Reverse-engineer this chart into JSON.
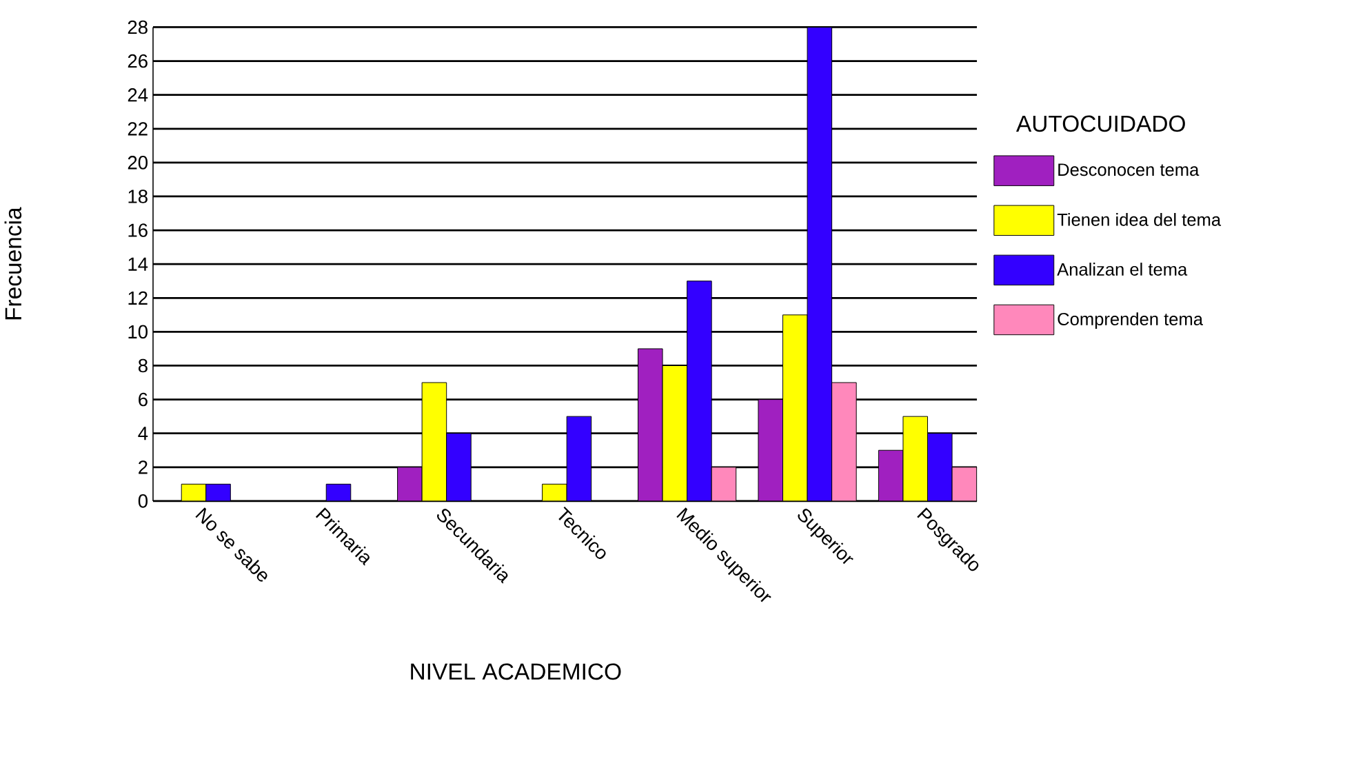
{
  "chart_data": {
    "type": "bar",
    "xlabel": "NIVEL ACADEMICO",
    "ylabel": "Frecuencia",
    "legend_title": "AUTOCUIDADO",
    "categories": [
      "No se sabe",
      "Primaria",
      "Secundaria",
      "Tecnico",
      "Medio superior",
      "Superior",
      "Posgrado"
    ],
    "series": [
      {
        "name": "Desconocen tema",
        "color": "#a020c0",
        "values": [
          null,
          null,
          2,
          null,
          9,
          6,
          3
        ]
      },
      {
        "name": "Tienen idea del tema",
        "color": "#ffff00",
        "values": [
          1,
          null,
          7,
          1,
          8,
          11,
          5
        ]
      },
      {
        "name": "Analizan el tema",
        "color": "#3300ff",
        "values": [
          1,
          1,
          4,
          5,
          13,
          28,
          4
        ]
      },
      {
        "name": "Comprenden tema",
        "color": "#ff88bb",
        "values": [
          null,
          null,
          null,
          null,
          2,
          7,
          2
        ]
      }
    ],
    "ylim": [
      0,
      28
    ],
    "yticks": [
      0,
      2,
      4,
      6,
      8,
      10,
      12,
      14,
      16,
      18,
      20,
      22,
      24,
      26,
      28
    ],
    "grid": "y",
    "legend": "right"
  }
}
